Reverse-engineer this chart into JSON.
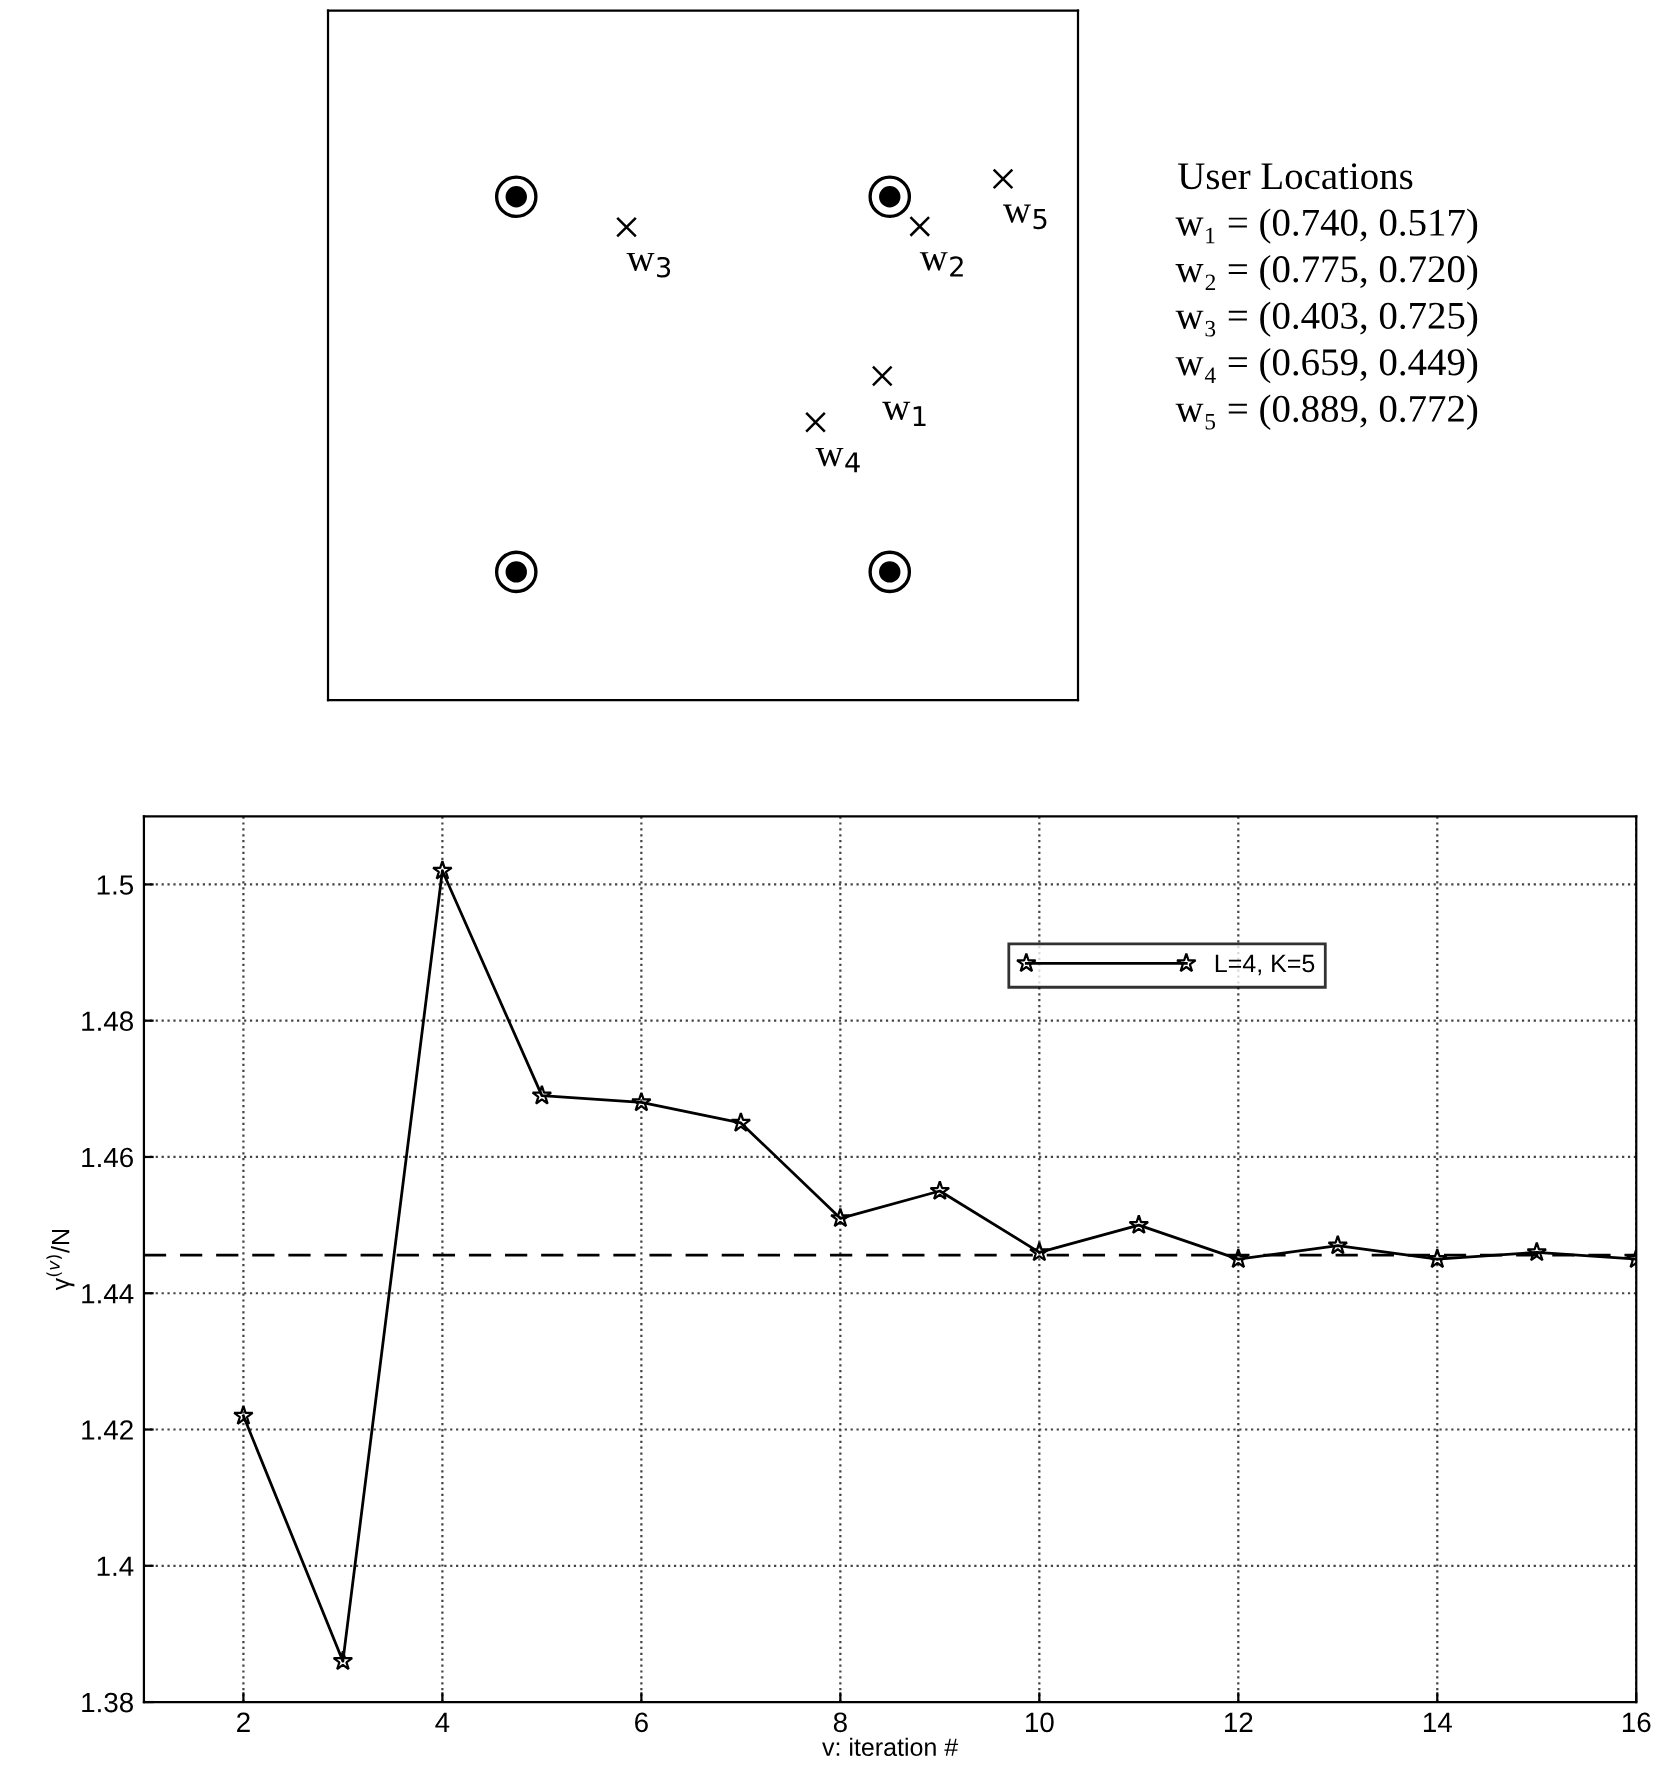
{
  "chart_data": [
    {
      "type": "other",
      "annotations": [
        "w$_{1}$",
        "w$_{2}$",
        "w$_{3}$",
        "w$_{4}$",
        "w$_{5}$",
        "User Locations",
        "w₁ = (0.740, 0.517)",
        "w₂ = (0.775, 0.720)",
        "w₃ = (0.403, 0.725)",
        "w₄ = (0.659, 0.449)",
        "w₅ = (0.889, 0.772)"
      ]
    },
    {
      "type": "line",
      "xlabel": "v: iteration #",
      "ylabel": "γ$^{(v)}$/N",
      "xlim": [
        1,
        16
      ],
      "ylim": [
        1.38,
        1.51
      ],
      "xticks": [
        2,
        4,
        6,
        8,
        10,
        12,
        14,
        16
      ],
      "yticks": [
        1.38,
        1.4,
        1.42,
        1.44,
        1.46,
        1.48,
        1.5
      ],
      "grid": true,
      "legend": "top right",
      "marker": "star",
      "line_style": "solid",
      "x": [
        2,
        3,
        4,
        5,
        6,
        7,
        8,
        9,
        10,
        11,
        12,
        13,
        14,
        15,
        16
      ],
      "series": [
        {
          "name": "L=4, K=5",
          "color": "#000000",
          "values": [
            1.422,
            1.386,
            1.502,
            1.469,
            1.468,
            1.465,
            1.451,
            1.455,
            1.446,
            1.45,
            1.445,
            1.447,
            1.445,
            1.446,
            1.445
          ]
        }
      ],
      "ref_lines": [
        {
          "axis": "y",
          "value": 1.4456,
          "color": "#000000",
          "line_style": "dashed"
        }
      ]
    }
  ]
}
